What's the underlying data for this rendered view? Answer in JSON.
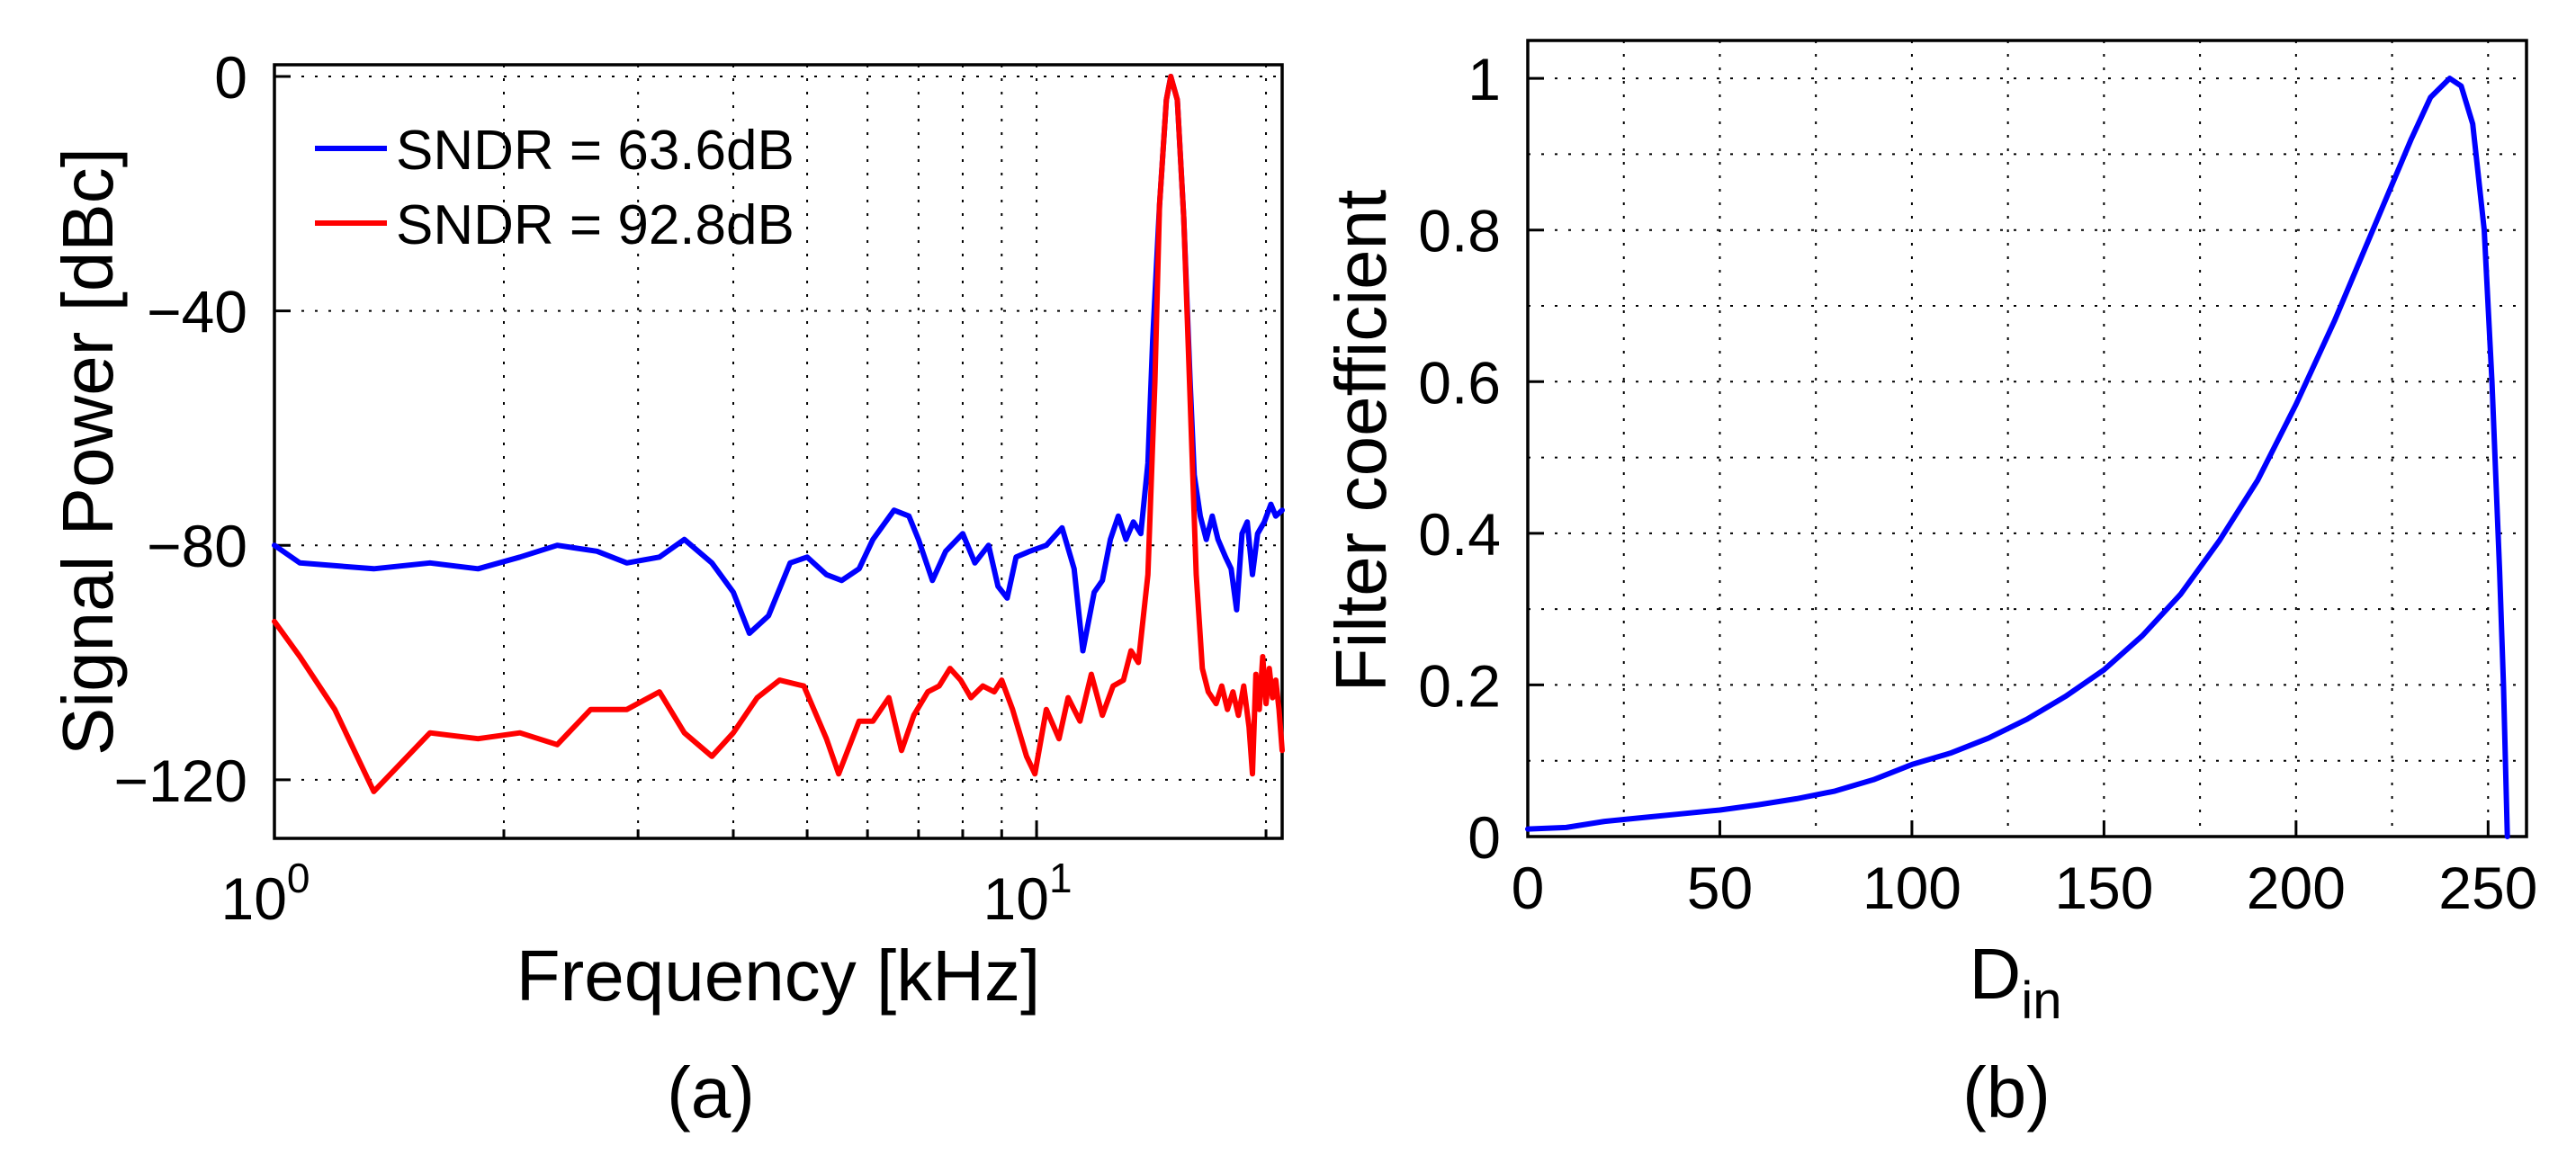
{
  "chart_data": [
    {
      "id": "a",
      "type": "line",
      "caption": "(a)",
      "xlabel": "Frequency [kHz]",
      "ylabel": "Signal Power [dBc]",
      "xscale": "log",
      "xlim": [
        1,
        21
      ],
      "ylim": [
        -130,
        2
      ],
      "x_ticks": [
        {
          "value": 1,
          "base": "10",
          "exp": "0"
        },
        {
          "value": 10,
          "base": "10",
          "exp": "1"
        }
      ],
      "y_ticks": [
        {
          "value": 0,
          "label": "0"
        },
        {
          "value": -40,
          "label": "-40"
        },
        {
          "value": -80,
          "label": "-80"
        },
        {
          "value": -120,
          "label": "-120"
        }
      ],
      "grid": true,
      "legend_position": "top-left",
      "series": [
        {
          "name": "SNDR = 63.6dB",
          "color": "#0000ff",
          "points": [
            [
              1.0,
              -80
            ],
            [
              1.08,
              -83
            ],
            [
              1.35,
              -84
            ],
            [
              1.6,
              -83
            ],
            [
              1.85,
              -84
            ],
            [
              2.1,
              -82
            ],
            [
              2.35,
              -80
            ],
            [
              2.65,
              -81
            ],
            [
              2.9,
              -83
            ],
            [
              3.2,
              -82
            ],
            [
              3.45,
              -79
            ],
            [
              3.75,
              -83
            ],
            [
              4.0,
              -88
            ],
            [
              4.2,
              -95
            ],
            [
              4.45,
              -92
            ],
            [
              4.75,
              -83
            ],
            [
              5.0,
              -82
            ],
            [
              5.3,
              -85
            ],
            [
              5.55,
              -86
            ],
            [
              5.85,
              -84
            ],
            [
              6.1,
              -79
            ],
            [
              6.5,
              -74
            ],
            [
              6.8,
              -75
            ],
            [
              7.0,
              -79
            ],
            [
              7.3,
              -86
            ],
            [
              7.6,
              -81
            ],
            [
              8.0,
              -78
            ],
            [
              8.3,
              -83
            ],
            [
              8.65,
              -80
            ],
            [
              8.9,
              -87
            ],
            [
              9.15,
              -89
            ],
            [
              9.4,
              -82
            ],
            [
              9.8,
              -81
            ],
            [
              10.3,
              -80
            ],
            [
              10.8,
              -77
            ],
            [
              11.2,
              -84
            ],
            [
              11.5,
              -98
            ],
            [
              11.9,
              -88
            ],
            [
              12.2,
              -86
            ],
            [
              12.5,
              -79
            ],
            [
              12.8,
              -75
            ],
            [
              13.1,
              -79
            ],
            [
              13.4,
              -76
            ],
            [
              13.7,
              -78
            ],
            [
              14.0,
              -66
            ],
            [
              14.2,
              -45
            ],
            [
              14.5,
              -22
            ],
            [
              14.8,
              -4
            ],
            [
              15.0,
              0
            ],
            [
              15.3,
              -4
            ],
            [
              15.6,
              -24
            ],
            [
              15.9,
              -52
            ],
            [
              16.1,
              -68
            ],
            [
              16.4,
              -75
            ],
            [
              16.7,
              -79
            ],
            [
              17.0,
              -75
            ],
            [
              17.3,
              -79
            ],
            [
              17.7,
              -82
            ],
            [
              18.0,
              -84
            ],
            [
              18.3,
              -91
            ],
            [
              18.6,
              -78
            ],
            [
              18.9,
              -76
            ],
            [
              19.2,
              -85
            ],
            [
              19.5,
              -78
            ],
            [
              19.9,
              -76
            ],
            [
              20.3,
              -73
            ],
            [
              20.6,
              -75
            ],
            [
              21.0,
              -74
            ]
          ]
        },
        {
          "name": "SNDR = 92.8dB",
          "color": "#ff0000",
          "points": [
            [
              1.0,
              -93
            ],
            [
              1.08,
              -99
            ],
            [
              1.2,
              -108
            ],
            [
              1.35,
              -122
            ],
            [
              1.6,
              -112
            ],
            [
              1.85,
              -113
            ],
            [
              2.1,
              -112
            ],
            [
              2.35,
              -114
            ],
            [
              2.6,
              -108
            ],
            [
              2.9,
              -108
            ],
            [
              3.2,
              -105
            ],
            [
              3.45,
              -112
            ],
            [
              3.75,
              -116
            ],
            [
              4.0,
              -112
            ],
            [
              4.3,
              -106
            ],
            [
              4.6,
              -103
            ],
            [
              4.95,
              -104
            ],
            [
              5.3,
              -113
            ],
            [
              5.5,
              -119
            ],
            [
              5.85,
              -110
            ],
            [
              6.1,
              -110
            ],
            [
              6.4,
              -106
            ],
            [
              6.65,
              -115
            ],
            [
              6.9,
              -109
            ],
            [
              7.2,
              -105
            ],
            [
              7.45,
              -104
            ],
            [
              7.7,
              -101
            ],
            [
              7.95,
              -103
            ],
            [
              8.2,
              -106
            ],
            [
              8.5,
              -104
            ],
            [
              8.8,
              -105
            ],
            [
              9.0,
              -103
            ],
            [
              9.3,
              -108
            ],
            [
              9.7,
              -116
            ],
            [
              9.95,
              -119
            ],
            [
              10.3,
              -108
            ],
            [
              10.7,
              -113
            ],
            [
              11.0,
              -106
            ],
            [
              11.4,
              -110
            ],
            [
              11.8,
              -102
            ],
            [
              12.2,
              -109
            ],
            [
              12.6,
              -104
            ],
            [
              13.0,
              -103
            ],
            [
              13.3,
              -98
            ],
            [
              13.6,
              -100
            ],
            [
              14.0,
              -85
            ],
            [
              14.3,
              -52
            ],
            [
              14.5,
              -22
            ],
            [
              14.8,
              -4
            ],
            [
              15.0,
              0
            ],
            [
              15.3,
              -4
            ],
            [
              15.6,
              -24
            ],
            [
              15.9,
              -55
            ],
            [
              16.2,
              -85
            ],
            [
              16.5,
              -101
            ],
            [
              16.8,
              -105
            ],
            [
              17.2,
              -107
            ],
            [
              17.5,
              -104
            ],
            [
              17.8,
              -108
            ],
            [
              18.1,
              -105
            ],
            [
              18.4,
              -109
            ],
            [
              18.7,
              -104
            ],
            [
              19.0,
              -111
            ],
            [
              19.2,
              -119
            ],
            [
              19.4,
              -102
            ],
            [
              19.6,
              -108
            ],
            [
              19.8,
              -99
            ],
            [
              20.0,
              -107
            ],
            [
              20.2,
              -101
            ],
            [
              20.4,
              -106
            ],
            [
              20.6,
              -103
            ],
            [
              20.8,
              -108
            ],
            [
              21.0,
              -115
            ]
          ]
        }
      ]
    },
    {
      "id": "b",
      "type": "line",
      "caption": "(b)",
      "xlabel": "D",
      "xlabel_sub": "in",
      "ylabel": "Filter coefficient",
      "xscale": "linear",
      "xlim": [
        0,
        260
      ],
      "ylim": [
        0,
        1.05
      ],
      "x_ticks": [
        {
          "value": 0,
          "label": "0"
        },
        {
          "value": 50,
          "label": "50"
        },
        {
          "value": 100,
          "label": "100"
        },
        {
          "value": 150,
          "label": "150"
        },
        {
          "value": 200,
          "label": "200"
        },
        {
          "value": 250,
          "label": "250"
        }
      ],
      "y_ticks": [
        {
          "value": 0,
          "label": "0"
        },
        {
          "value": 0.2,
          "label": "0.2"
        },
        {
          "value": 0.4,
          "label": "0.4"
        },
        {
          "value": 0.6,
          "label": "0.6"
        },
        {
          "value": 0.8,
          "label": "0.8"
        },
        {
          "value": 1,
          "label": "1"
        }
      ],
      "x_minor_grid": [
        25,
        75,
        125,
        175,
        225
      ],
      "y_minor_grid": [
        0.1,
        0.3,
        0.5,
        0.7,
        0.9
      ],
      "grid": true,
      "series": [
        {
          "name": "Filter coefficient",
          "color": "#0000ff",
          "points": [
            [
              0,
              0.01
            ],
            [
              10,
              0.012
            ],
            [
              20,
              0.02
            ],
            [
              30,
              0.025
            ],
            [
              40,
              0.03
            ],
            [
              50,
              0.035
            ],
            [
              60,
              0.042
            ],
            [
              70,
              0.05
            ],
            [
              80,
              0.06
            ],
            [
              90,
              0.075
            ],
            [
              100,
              0.095
            ],
            [
              110,
              0.11
            ],
            [
              120,
              0.13
            ],
            [
              130,
              0.155
            ],
            [
              140,
              0.185
            ],
            [
              150,
              0.22
            ],
            [
              160,
              0.265
            ],
            [
              170,
              0.32
            ],
            [
              180,
              0.39
            ],
            [
              190,
              0.47
            ],
            [
              200,
              0.57
            ],
            [
              210,
              0.68
            ],
            [
              220,
              0.8
            ],
            [
              230,
              0.92
            ],
            [
              235,
              0.975
            ],
            [
              240,
              1.0
            ],
            [
              243,
              0.99
            ],
            [
              246,
              0.94
            ],
            [
              249,
              0.8
            ],
            [
              251,
              0.6
            ],
            [
              253,
              0.35
            ],
            [
              254,
              0.2
            ],
            [
              255,
              0.0
            ]
          ]
        }
      ]
    }
  ]
}
